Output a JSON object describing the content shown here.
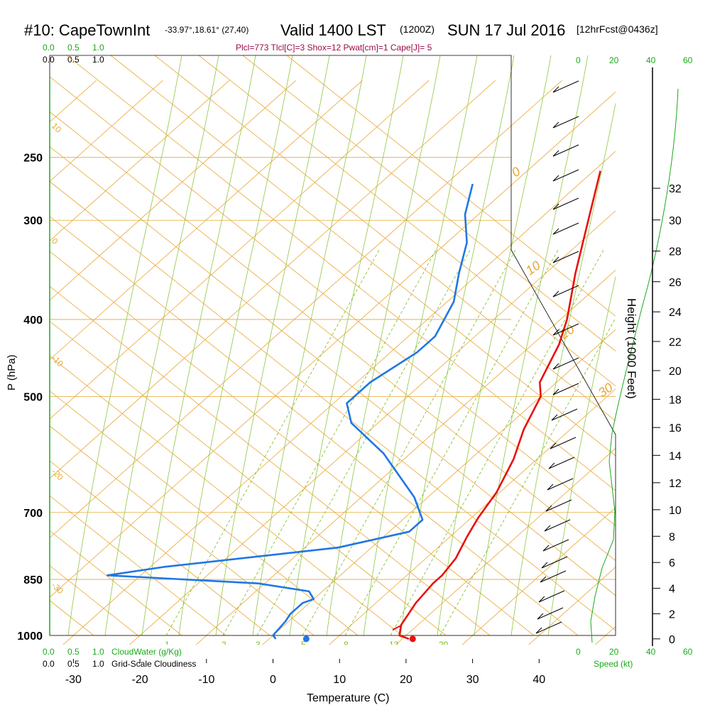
{
  "header": {
    "station_id": "#10: CapeTownInt",
    "coords": "-33.97°,18.61° (27,40)",
    "valid": "Valid 1400 LST",
    "valid_z": "(1200Z)",
    "date": "SUN 17 Jul 2016",
    "forecast": "[12hrFcst@0436z]",
    "stats": "Plcl=773 Tlcl[C]=3 Shox=12 Pwat[cm]=1 Cape[J]= 5"
  },
  "scales": {
    "cloud_top": [
      "0.0",
      "0.5",
      "1.0"
    ],
    "cloud_top_black": [
      "0.0",
      "0.5",
      "1.0"
    ],
    "cloudwater_bottom": [
      "0.0",
      "0.5",
      "1.0"
    ],
    "cloudwater_label": "CloudWater (g/Kg)",
    "cloudiness_bottom": [
      "0.0",
      "0.5",
      "1.0"
    ],
    "cloudiness_label": "Grid-Scale Cloudiness",
    "speed_top_black": [
      "0"
    ],
    "speed_top_green": [
      "20",
      "40",
      "60"
    ],
    "speed_bottom_black": [
      "0"
    ],
    "speed_bottom_green": [
      "20",
      "40",
      "60"
    ],
    "speed_label": "Speed (kt)"
  },
  "chart_data": {
    "type": "line",
    "title": "#10: CapeTownInt Valid 1400 LST (1200Z) SUN 17 Jul 2016",
    "xlabel": "Temperature (C)",
    "ylabel": "P (hPa)",
    "y2label": "Height (1000 Feet)",
    "x_ticks": [
      "-30",
      "-20",
      "-10",
      "0",
      "10",
      "20",
      "30",
      "40"
    ],
    "xlim": [
      -34,
      36
    ],
    "y_scale": "log",
    "ylim": [
      1020,
      250
    ],
    "y_ticks": [
      "1000",
      "850",
      "700",
      "500",
      "400",
      "300",
      "250"
    ],
    "y2_ticks": [
      "0",
      "2",
      "4",
      "6",
      "8",
      "10",
      "12",
      "14",
      "16",
      "18",
      "20",
      "22",
      "24",
      "26",
      "28",
      "30",
      "32"
    ],
    "mixing_ratio_labels": [
      "1",
      "2",
      "3",
      "5",
      "8",
      "12",
      "20"
    ],
    "theta_labels": [
      "0",
      "10",
      "20",
      "30"
    ],
    "isotherm_labels": [
      "10",
      "0",
      "-10",
      "-20",
      "-30"
    ],
    "series": [
      {
        "name": "",
        "color": "#e8110f",
        "points": [
          {
            "x": 21,
            "p": 1010
          },
          {
            "x": 19,
            "p": 1000
          },
          {
            "x": 17.5,
            "p": 970
          },
          {
            "x": 16,
            "p": 910
          },
          {
            "x": 15.3,
            "p": 860
          },
          {
            "x": 15.3,
            "p": 840
          },
          {
            "x": 14.5,
            "p": 800
          },
          {
            "x": 12.5,
            "p": 750
          },
          {
            "x": 11,
            "p": 710
          },
          {
            "x": 9.5,
            "p": 660
          },
          {
            "x": 6.5,
            "p": 600
          },
          {
            "x": 3,
            "p": 550
          },
          {
            "x": 0,
            "p": 500
          },
          {
            "x": -2.5,
            "p": 480
          },
          {
            "x": -6,
            "p": 430
          },
          {
            "x": -9,
            "p": 400
          },
          {
            "x": -15.5,
            "p": 350
          },
          {
            "x": -22.5,
            "p": 300
          },
          {
            "x": -29,
            "p": 260
          }
        ]
      },
      {
        "name": "",
        "color": "#1f77e6",
        "points": [
          {
            "x": 1,
            "p": 1010
          },
          {
            "x": 0,
            "p": 1000
          },
          {
            "x": -0.5,
            "p": 960
          },
          {
            "x": -1,
            "p": 940
          },
          {
            "x": -1,
            "p": 910
          },
          {
            "x": 0,
            "p": 900
          },
          {
            "x": -2,
            "p": 880
          },
          {
            "x": -11,
            "p": 860
          },
          {
            "x": -35,
            "p": 840
          },
          {
            "x": -28,
            "p": 820
          },
          {
            "x": -5,
            "p": 775
          },
          {
            "x": 3,
            "p": 740
          },
          {
            "x": 3,
            "p": 715
          },
          {
            "x": -2,
            "p": 670
          },
          {
            "x": -14,
            "p": 590
          },
          {
            "x": -24,
            "p": 540
          },
          {
            "x": -28,
            "p": 510
          },
          {
            "x": -28,
            "p": 480
          },
          {
            "x": -26,
            "p": 440
          },
          {
            "x": -26,
            "p": 420
          },
          {
            "x": -29,
            "p": 380
          },
          {
            "x": -33,
            "p": 350
          },
          {
            "x": -37,
            "p": 320
          },
          {
            "x": -42,
            "p": 295
          },
          {
            "x": -46,
            "p": 270
          }
        ]
      }
    ],
    "surface_markers": [
      {
        "name": "",
        "x": 21,
        "p": 1010,
        "color": "#e8110f"
      },
      {
        "name": "",
        "x": 5,
        "p": 1010,
        "color": "#1f77e6"
      }
    ]
  }
}
